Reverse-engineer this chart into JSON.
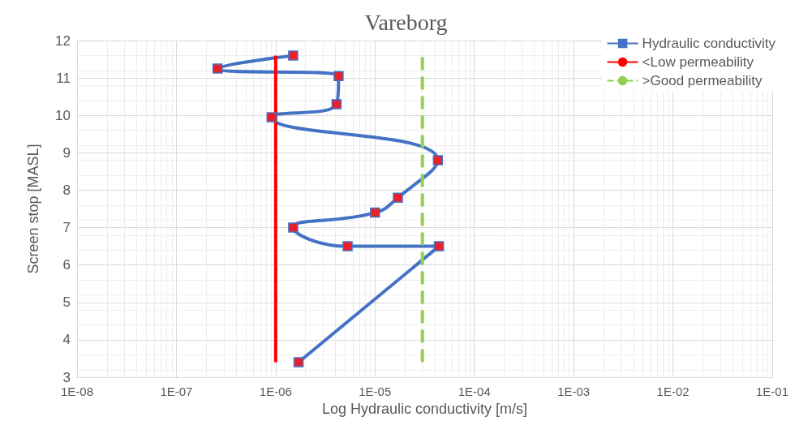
{
  "chart_data": {
    "type": "line",
    "title": "Vareborg",
    "xlabel": "Log Hydraulic conductivity [m/s]",
    "ylabel": "Screen stop [MASL]",
    "log": "x",
    "grid": true,
    "legend": "top right",
    "marker": "square",
    "line_style": "solid",
    "xlim": [
      1e-08,
      0.1
    ],
    "xticks": [
      {
        "value": 1e-08,
        "label": "1E-08"
      },
      {
        "value": 1e-07,
        "label": "1E-07"
      },
      {
        "value": 1e-06,
        "label": "1E-06"
      },
      {
        "value": 1e-05,
        "label": "1E-05"
      },
      {
        "value": 0.0001,
        "label": "1E-04"
      },
      {
        "value": 0.001,
        "label": "1E-03"
      },
      {
        "value": 0.01,
        "label": "1E-02"
      },
      {
        "value": 0.1,
        "label": "1E-01"
      }
    ],
    "ylim": [
      3,
      12
    ],
    "yticks": [
      3,
      4,
      5,
      6,
      7,
      8,
      9,
      10,
      11,
      12
    ],
    "series": [
      {
        "name": "Hydraulic conductivity",
        "color": "#4472c4",
        "colors": [
          "#e8202a",
          "#e8202a",
          "#e8202a",
          "#e8202a",
          "#e8202a",
          "#e8202a",
          "#e8202a",
          "#e8202a",
          "#e8202a",
          "#e8202a",
          "#e8202a",
          "#e8202a"
        ],
        "x": [
          1.5e-06,
          2.6e-07,
          4.3e-06,
          4.1e-06,
          9.1e-07,
          4.3e-05,
          1.7e-05,
          1e-05,
          1.5e-06,
          5.3e-06,
          4.4e-05,
          1.7e-06
        ],
        "values": [
          11.6,
          11.25,
          11.05,
          10.3,
          9.95,
          8.8,
          7.8,
          7.4,
          7.0,
          6.5,
          6.5,
          3.4
        ]
      },
      {
        "name": "<Low permeability",
        "color": "#ff0000",
        "marker": "none",
        "x": [
          1e-06,
          1e-06
        ],
        "values": [
          3.4,
          11.6
        ]
      },
      {
        "name": ">Good permeability",
        "color": "#92d050",
        "marker": "none",
        "line_style": "dashed",
        "x": [
          3e-05,
          3e-05
        ],
        "values": [
          3.4,
          11.6
        ]
      }
    ]
  }
}
